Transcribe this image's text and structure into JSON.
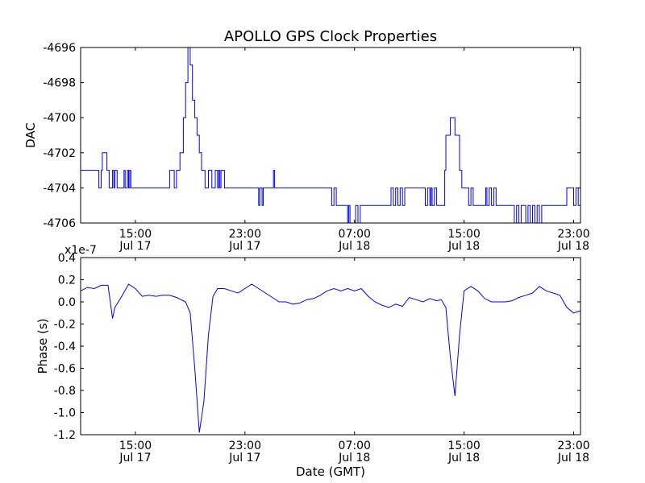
{
  "figure": {
    "title": "APOLLO GPS Clock Properties"
  },
  "chart_data": [
    {
      "type": "line",
      "title": "APOLLO GPS Clock Properties",
      "xlabel": "",
      "ylabel": "DAC",
      "x_type": "date",
      "xlim": [
        "2013-07-17 11:00",
        "2013-07-18 23:30"
      ],
      "ylim": [
        -4706,
        -4696
      ],
      "yticks": [
        -4706,
        -4704,
        -4702,
        -4700,
        -4698,
        -4696
      ],
      "ytick_labels": [
        "-4706",
        "-4704",
        "-4702",
        "-4700",
        "-4698",
        "-4696"
      ],
      "xticks": [
        {
          "time": "2013-07-17 15:00",
          "line1": "15:00",
          "line2": "Jul 17"
        },
        {
          "time": "2013-07-17 23:00",
          "line1": "23:00",
          "line2": "Jul 17"
        },
        {
          "time": "2013-07-18 07:00",
          "line1": "07:00",
          "line2": "Jul 18"
        },
        {
          "time": "2013-07-18 15:00",
          "line1": "15:00",
          "line2": "Jul 18"
        },
        {
          "time": "2013-07-18 23:00",
          "line1": "23:00",
          "line2": "Jul 18"
        }
      ],
      "grid": false,
      "line_style": "step",
      "colors": {
        "line": "#0000ff",
        "axes": "#000000"
      },
      "series": [
        {
          "x": [
            "2013-07-17 11:00",
            "2013-07-17 12:20",
            "2013-07-17 12:30",
            "2013-07-17 12:35",
            "2013-07-17 12:55",
            "2013-07-17 13:05",
            "2013-07-17 13:20",
            "2013-07-17 13:25",
            "2013-07-17 13:30",
            "2013-07-17 13:40",
            "2013-07-17 14:10",
            "2013-07-17 14:15",
            "2013-07-17 14:25",
            "2013-07-17 14:30",
            "2013-07-17 14:35",
            "2013-07-17 14:40",
            "2013-07-17 17:30",
            "2013-07-17 17:50",
            "2013-07-17 18:00",
            "2013-07-17 18:15",
            "2013-07-17 18:30",
            "2013-07-17 18:40",
            "2013-07-17 18:50",
            "2013-07-17 19:00",
            "2013-07-17 19:10",
            "2013-07-17 19:20",
            "2013-07-17 19:30",
            "2013-07-17 19:40",
            "2013-07-17 19:50",
            "2013-07-17 20:05",
            "2013-07-17 20:20",
            "2013-07-17 20:35",
            "2013-07-17 20:50",
            "2013-07-17 21:00",
            "2013-07-17 21:05",
            "2013-07-17 21:10",
            "2013-07-17 21:15",
            "2013-07-17 21:30",
            "2013-07-17 21:35",
            "2013-07-17 21:40",
            "2013-07-17 21:45",
            "2013-07-17 22:00",
            "2013-07-17 22:05",
            "2013-07-17 22:10",
            "2013-07-18 00:00",
            "2013-07-18 00:05",
            "2013-07-18 00:15",
            "2013-07-18 00:20",
            "2013-07-18 01:05",
            "2013-07-18 01:10",
            "2013-07-18 01:20",
            "2013-07-18 01:30",
            "2013-07-18 05:20",
            "2013-07-18 05:30",
            "2013-07-18 05:40",
            "2013-07-18 06:25",
            "2013-07-18 06:30",
            "2013-07-18 06:35",
            "2013-07-18 06:40",
            "2013-07-18 07:05",
            "2013-07-18 07:15",
            "2013-07-18 07:25",
            "2013-07-18 07:35",
            "2013-07-18 07:45",
            "2013-07-18 08:00",
            "2013-07-18 09:30",
            "2013-07-18 09:40",
            "2013-07-18 09:50",
            "2013-07-18 10:00",
            "2013-07-18 10:10",
            "2013-07-18 10:20",
            "2013-07-18 10:30",
            "2013-07-18 10:40",
            "2013-07-18 12:10",
            "2013-07-18 12:20",
            "2013-07-18 12:30",
            "2013-07-18 12:35",
            "2013-07-18 12:40",
            "2013-07-18 12:50",
            "2013-07-18 13:00",
            "2013-07-18 13:10",
            "2013-07-18 13:20",
            "2013-07-18 13:35",
            "2013-07-18 13:40",
            "2013-07-18 14:00",
            "2013-07-18 14:20",
            "2013-07-18 14:40",
            "2013-07-18 14:50",
            "2013-07-18 15:20",
            "2013-07-18 15:30",
            "2013-07-18 15:40",
            "2013-07-18 16:30",
            "2013-07-18 16:35",
            "2013-07-18 16:40",
            "2013-07-18 16:50",
            "2013-07-18 17:00",
            "2013-07-18 17:10",
            "2013-07-18 17:20",
            "2013-07-18 17:40",
            "2013-07-18 18:00",
            "2013-07-18 18:10",
            "2013-07-18 18:40",
            "2013-07-18 18:50",
            "2013-07-18 19:00",
            "2013-07-18 19:10",
            "2013-07-18 19:30",
            "2013-07-18 19:40",
            "2013-07-18 19:50",
            "2013-07-18 20:00",
            "2013-07-18 20:10",
            "2013-07-18 20:20",
            "2013-07-18 20:30",
            "2013-07-18 20:40",
            "2013-07-18 20:45",
            "2013-07-18 21:00",
            "2013-07-18 21:10",
            "2013-07-18 21:20",
            "2013-07-18 21:30",
            "2013-07-18 22:30",
            "2013-07-18 22:40",
            "2013-07-18 23:00",
            "2013-07-18 23:10",
            "2013-07-18 23:20",
            "2013-07-18 23:30"
          ],
          "y": [
            -4703,
            -4704,
            -4703,
            -4702,
            -4703,
            -4704,
            -4703,
            -4704,
            -4703,
            -4704,
            -4703,
            -4704,
            -4703,
            -4704,
            -4703,
            -4704,
            -4703,
            -4704,
            -4703,
            -4702,
            -4700,
            -4698,
            -4696,
            -4697,
            -4699,
            -4700,
            -4701,
            -4702,
            -4703,
            -4704,
            -4703,
            -4704,
            -4703,
            -4704,
            -4703,
            -4704,
            -4703,
            -4704,
            -4704,
            -4704,
            -4704,
            -4704,
            -4704,
            -4704,
            -4705,
            -4704,
            -4705,
            -4704,
            -4703,
            -4704,
            -4704,
            -4704,
            -4705,
            -4704,
            -4705,
            -4705,
            -4706,
            -4705,
            -4706,
            -4705,
            -4706,
            -4705,
            -4705,
            -4705,
            -4705,
            -4705,
            -4704,
            -4705,
            -4704,
            -4705,
            -4704,
            -4705,
            -4704,
            -4705,
            -4704,
            -4705,
            -4704,
            -4705,
            -4704,
            -4705,
            -4705,
            -4705,
            -4703,
            -4701,
            -4700,
            -4701,
            -4703,
            -4704,
            -4705,
            -4704,
            -4705,
            -4705,
            -4704,
            -4705,
            -4704,
            -4705,
            -4704,
            -4705,
            -4705,
            -4705,
            -4705,
            -4706,
            -4705,
            -4706,
            -4705,
            -4706,
            -4705,
            -4706,
            -4705,
            -4706,
            -4705,
            -4706,
            -4705,
            -4705,
            -4705,
            -4705,
            -4705,
            -4705,
            -4704,
            -4704,
            -4705,
            -4704,
            -4705,
            -4704
          ]
        }
      ]
    },
    {
      "type": "line",
      "title": "",
      "xlabel": "Date (GMT)",
      "ylabel": "Phase (s)",
      "y_multiplier_label": "x1e-7",
      "x_type": "date",
      "xlim": [
        "2013-07-17 11:00",
        "2013-07-18 23:30"
      ],
      "ylim": [
        -1.2,
        0.4
      ],
      "yticks": [
        -1.2,
        -1.0,
        -0.8,
        -0.6,
        -0.4,
        -0.2,
        0.0,
        0.2,
        0.4
      ],
      "ytick_labels": [
        "-1.2",
        "-1.0",
        "-0.8",
        "-0.6",
        "-0.4",
        "-0.2",
        "0.0",
        "0.2",
        "0.4"
      ],
      "xticks": [
        {
          "time": "2013-07-17 15:00",
          "line1": "15:00",
          "line2": "Jul 17"
        },
        {
          "time": "2013-07-17 23:00",
          "line1": "23:00",
          "line2": "Jul 17"
        },
        {
          "time": "2013-07-18 07:00",
          "line1": "07:00",
          "line2": "Jul 18"
        },
        {
          "time": "2013-07-18 15:00",
          "line1": "15:00",
          "line2": "Jul 18"
        },
        {
          "time": "2013-07-18 23:00",
          "line1": "23:00",
          "line2": "Jul 18"
        }
      ],
      "grid": false,
      "colors": {
        "line": "#0000ff",
        "axes": "#000000"
      },
      "series": [
        {
          "x": [
            "2013-07-17 11:00",
            "2013-07-17 11:30",
            "2013-07-17 12:00",
            "2013-07-17 12:30",
            "2013-07-17 13:00",
            "2013-07-17 13:20",
            "2013-07-17 13:30",
            "2013-07-17 14:00",
            "2013-07-17 14:30",
            "2013-07-17 15:00",
            "2013-07-17 15:30",
            "2013-07-17 16:00",
            "2013-07-17 16:30",
            "2013-07-17 17:00",
            "2013-07-17 17:30",
            "2013-07-17 18:00",
            "2013-07-17 18:20",
            "2013-07-17 18:40",
            "2013-07-17 19:00",
            "2013-07-17 19:20",
            "2013-07-17 19:40",
            "2013-07-17 20:00",
            "2013-07-17 20:20",
            "2013-07-17 20:40",
            "2013-07-17 21:00",
            "2013-07-17 21:30",
            "2013-07-17 22:00",
            "2013-07-17 22:30",
            "2013-07-17 23:00",
            "2013-07-17 23:30",
            "2013-07-18 00:00",
            "2013-07-18 00:30",
            "2013-07-18 01:00",
            "2013-07-18 01:30",
            "2013-07-18 02:00",
            "2013-07-18 02:30",
            "2013-07-18 03:00",
            "2013-07-18 03:30",
            "2013-07-18 04:00",
            "2013-07-18 04:30",
            "2013-07-18 05:00",
            "2013-07-18 05:30",
            "2013-07-18 06:00",
            "2013-07-18 06:30",
            "2013-07-18 07:00",
            "2013-07-18 07:30",
            "2013-07-18 08:00",
            "2013-07-18 08:30",
            "2013-07-18 09:00",
            "2013-07-18 09:30",
            "2013-07-18 10:00",
            "2013-07-18 10:30",
            "2013-07-18 11:00",
            "2013-07-18 11:30",
            "2013-07-18 12:00",
            "2013-07-18 12:30",
            "2013-07-18 13:00",
            "2013-07-18 13:20",
            "2013-07-18 13:40",
            "2013-07-18 14:00",
            "2013-07-18 14:20",
            "2013-07-18 14:40",
            "2013-07-18 15:00",
            "2013-07-18 15:30",
            "2013-07-18 16:00",
            "2013-07-18 16:30",
            "2013-07-18 17:00",
            "2013-07-18 17:30",
            "2013-07-18 18:00",
            "2013-07-18 18:30",
            "2013-07-18 19:00",
            "2013-07-18 19:30",
            "2013-07-18 20:00",
            "2013-07-18 20:30",
            "2013-07-18 21:00",
            "2013-07-18 21:30",
            "2013-07-18 22:00",
            "2013-07-18 22:30",
            "2013-07-18 23:00",
            "2013-07-18 23:30"
          ],
          "y": [
            0.1,
            0.13,
            0.12,
            0.15,
            0.15,
            -0.15,
            -0.05,
            0.05,
            0.16,
            0.12,
            0.05,
            0.06,
            0.05,
            0.06,
            0.06,
            0.04,
            0.02,
            0.0,
            -0.1,
            -0.6,
            -1.18,
            -0.9,
            -0.3,
            0.05,
            0.12,
            0.12,
            0.1,
            0.08,
            0.12,
            0.16,
            0.12,
            0.08,
            0.04,
            0.0,
            0.0,
            -0.02,
            -0.01,
            0.02,
            0.03,
            0.06,
            0.1,
            0.12,
            0.1,
            0.12,
            0.1,
            0.12,
            0.05,
            0.0,
            -0.03,
            -0.05,
            -0.02,
            -0.04,
            0.04,
            0.02,
            0.0,
            0.03,
            0.01,
            0.02,
            -0.05,
            -0.5,
            -0.85,
            -0.3,
            0.1,
            0.14,
            0.1,
            0.03,
            0.0,
            0.0,
            0.0,
            0.01,
            0.04,
            0.06,
            0.08,
            0.14,
            0.1,
            0.08,
            0.06,
            -0.05,
            -0.1,
            -0.08
          ]
        }
      ]
    }
  ]
}
